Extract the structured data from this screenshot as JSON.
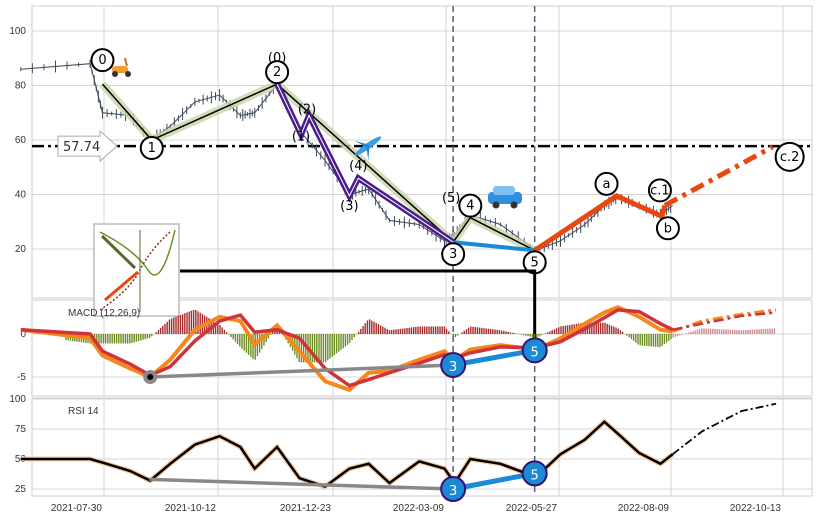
{
  "chart_data": {
    "type": "line",
    "x_ticks": [
      "2021-07-30",
      "2021-10-12",
      "2021-12-23",
      "2022-03-09",
      "2022-05-27",
      "2022-08-09",
      "2022-10-13"
    ],
    "grid": true,
    "dates": [
      "2021-06-06",
      "2021-07-21",
      "2021-07-29",
      "2021-08-16",
      "2021-08-29",
      "2021-09-11",
      "2021-09-27",
      "2021-10-13",
      "2021-10-26",
      "2021-11-04",
      "2021-11-18",
      "2021-12-02",
      "2021-12-18",
      "2022-01-03",
      "2022-01-16",
      "2022-01-30",
      "2022-02-19",
      "2022-03-08",
      "2022-03-15",
      "2022-03-26",
      "2022-04-16",
      "2022-05-11",
      "2022-05-28",
      "2022-06-13",
      "2022-06-26",
      "2022-07-05",
      "2022-07-19",
      "2022-08-02",
      "2022-08-10",
      "2022-08-27",
      "2022-09-19",
      "2022-10-09"
    ],
    "price_panel": {
      "ylim": [
        0,
        108
      ],
      "y_ticks": [
        20,
        40,
        60,
        80,
        100
      ],
      "price": [
        86,
        88,
        70,
        69,
        60,
        65,
        74,
        76.5,
        69,
        70,
        80.5,
        63.5,
        52.5,
        40,
        42,
        30.5,
        29,
        23,
        25,
        32.5,
        29,
        19.5,
        23,
        29,
        36,
        38.7,
        36,
        32.5,
        36
      ],
      "level": {
        "value": 57.74,
        "label": "57.74"
      },
      "waves_primary": [
        {
          "label": "0",
          "date": "2021-07-29",
          "price": 80.5
        },
        {
          "label": "1",
          "date": "2021-08-30",
          "price": 60
        },
        {
          "label": "2",
          "date": "2021-11-18",
          "price": 80.5
        },
        {
          "label": "3",
          "date": "2022-03-14",
          "price": 22.5
        },
        {
          "label": "4",
          "date": "2022-03-26",
          "price": 31.5
        },
        {
          "label": "5",
          "date": "2022-05-10",
          "price": 19.5
        }
      ],
      "waves_sub": [
        {
          "label": "(0)",
          "date": "2021-11-18",
          "price": 80.5
        },
        {
          "label": "(1)",
          "date": "2021-12-03",
          "price": 62
        },
        {
          "label": "(2)",
          "date": "2021-12-08",
          "price": 69
        },
        {
          "label": "(3)",
          "date": "2022-01-03",
          "price": 39.5
        },
        {
          "label": "(4)",
          "date": "2022-01-09",
          "price": 46
        },
        {
          "label": "(5)",
          "date": "2022-03-14",
          "price": 22.5
        }
      ],
      "waves_correction": [
        {
          "label": "",
          "date": "2022-05-10",
          "price": 19.5
        },
        {
          "label": "a",
          "date": "2022-07-04",
          "price": 39.5
        },
        {
          "label": "b",
          "date": "2022-08-03",
          "price": 32
        },
        {
          "label": "c.1",
          "date": "2022-08-05",
          "price": 36
        },
        {
          "label": "c.2",
          "date": "2022-10-07",
          "price": 57.5
        }
      ],
      "icons": [
        "scooter-icon",
        "airplane-icon",
        "car-icon"
      ],
      "colors": {
        "price": "#3d4a5c",
        "sub": "#4b1d8a",
        "primary_glow": "#c7d3a8",
        "correction": "#e8470f",
        "divergence": "#1a8ad4",
        "divergence_old": "#888888"
      }
    },
    "macd_panel": {
      "title": "MACD (12,26,9)",
      "y_ticks": [
        0,
        -5
      ],
      "ylim": [
        -7.5,
        3.9
      ],
      "projection_from": "2022-08-10",
      "macd": [
        0.5,
        -0.5,
        -2.5,
        -4,
        -5,
        -3,
        0.5,
        2,
        1.5,
        -1.2,
        1,
        -2,
        -5.5,
        -6.5,
        -4.5,
        -4.3,
        -3,
        -2,
        -3,
        -1.8,
        -1.3,
        -1.8,
        -0.5,
        1.2,
        2.5,
        3.1,
        2,
        0.5,
        0.3,
        1.5,
        2.3,
        2.8
      ],
      "signal": [
        0.5,
        0,
        -2,
        -3.5,
        -4.8,
        -3.8,
        -0.8,
        1.5,
        2.2,
        0.2,
        0.5,
        -0.5,
        -4,
        -6,
        -5.3,
        -4.5,
        -3.4,
        -2.4,
        -2.8,
        -2.2,
        -1.5,
        -1.6,
        -0.9,
        0.6,
        1.9,
        2.8,
        2.6,
        1.2,
        0.5,
        1.2,
        2.1,
        2.5
      ],
      "divergence_old": [
        {
          "date": "2021-08-29",
          "value": -5
        },
        {
          "date": "2022-03-14",
          "value": -3.6,
          "label": "3"
        }
      ],
      "divergence": [
        {
          "date": "2022-03-14",
          "value": -3.6,
          "label": "3"
        },
        {
          "date": "2022-05-10",
          "value": -1.9,
          "label": "5"
        }
      ],
      "colors": {
        "macd": "#f7861c",
        "signal": "#d0343a",
        "hist_pos": "#a52a2a",
        "hist_neg": "#6b8e23"
      }
    },
    "rsi_panel": {
      "title": "RSI 14",
      "y_ticks": [
        25,
        50,
        75,
        100
      ],
      "ylim": [
        16,
        100
      ],
      "rsi": [
        50,
        50,
        47,
        40,
        32,
        46,
        62,
        69,
        60,
        42,
        60,
        34,
        27,
        42,
        46,
        30,
        48,
        42,
        30,
        50,
        46,
        35,
        54,
        66,
        81,
        71,
        55,
        46,
        54,
        73,
        90,
        96
      ],
      "divergence_old": [
        {
          "date": "2021-08-29",
          "value": 33
        },
        {
          "date": "2022-03-14",
          "value": 25,
          "label": "3"
        }
      ],
      "divergence": [
        {
          "date": "2022-03-14",
          "value": 25,
          "label": "3"
        },
        {
          "date": "2022-05-10",
          "value": 38,
          "label": "5"
        }
      ]
    },
    "markers": {
      "vlines": [
        "2022-03-14",
        "2022-05-10"
      ]
    }
  }
}
